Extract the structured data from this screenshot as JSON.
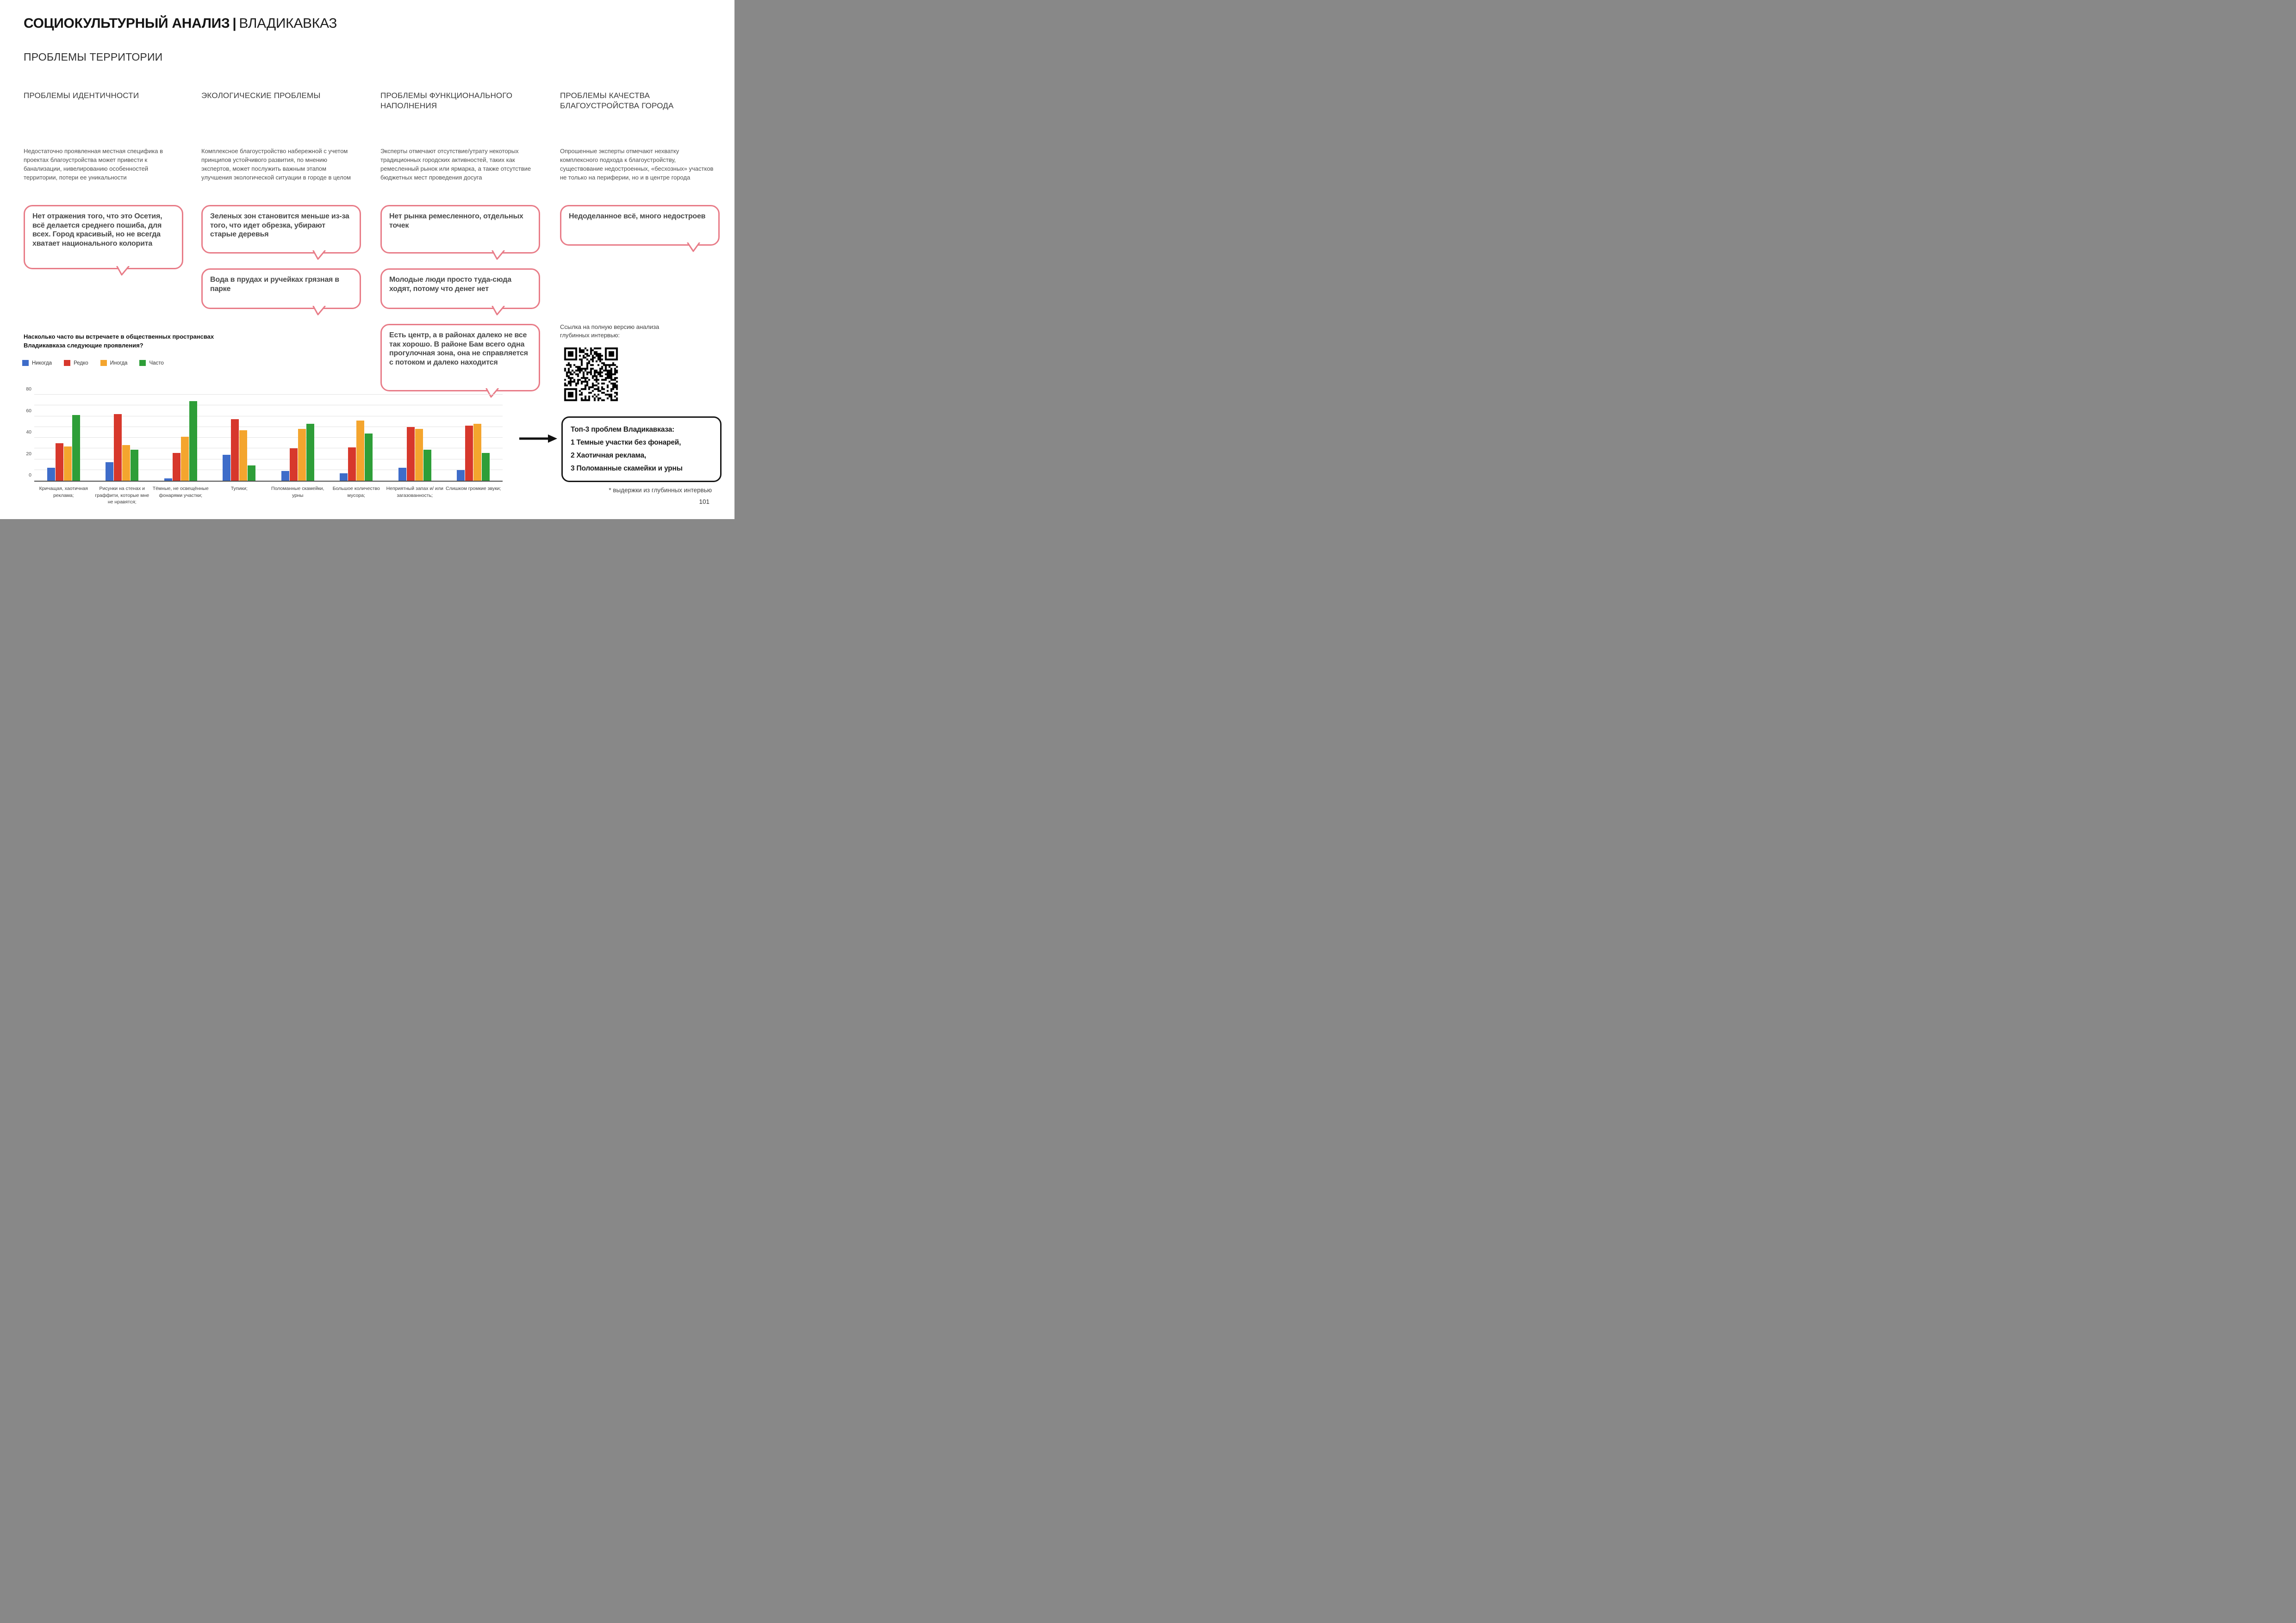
{
  "header": {
    "title_bold": "СОЦИОКУЛЬТУРНЫЙ АНАЛИЗ",
    "separator": "|",
    "title_regular": "ВЛАДИКАВКАЗ",
    "subtitle": "ПРОБЛЕМЫ ТЕРРИТОРИИ"
  },
  "columns": [
    {
      "heading": "ПРОБЛЕМЫ ИДЕНТИЧНОСТИ",
      "body": "Недостаточно проявленная местная специфика в проектах благоустройства может привести к банализации, нивелированию особенностей территории, потери ее уникальности",
      "quotes": [
        "Нет отражения того, что это Осетия, всё делается среднего пошиба, для всех. Город красивый, но не всегда хватает национального колорита"
      ]
    },
    {
      "heading": "ЭКОЛОГИЧЕСКИЕ ПРОБЛЕМЫ",
      "body": "Комплексное благоустройство набережной с учетом принципов устойчивого развития, по мнению экспертов, может послужить важным этапом улучшения экологической ситуации в городе в целом",
      "quotes": [
        "Зеленых зон становится меньше из-за того, что идет обрезка, убирают старые деревья",
        "Вода в прудах и ручейках грязная в парке"
      ]
    },
    {
      "heading": "ПРОБЛЕМЫ ФУНКЦИОНАЛЬНОГО НАПОЛНЕНИЯ",
      "body": "Эксперты отмечают отсутствие/утрату некоторых традиционных городских активностей, таких как ремесленный рынок или ярмарка, а также отсутствие бюджетных мест проведения досуга",
      "quotes": [
        "Нет рынка ремесленного, отдельных точек",
        "Молодые люди просто туда-сюда ходят, потому что денег нет",
        "Есть центр, а в районах далеко не все так хорошо. В районе Бам всего одна прогулочная зона, она не справляется с потоком и далеко находится"
      ]
    },
    {
      "heading": "ПРОБЛЕМЫ КАЧЕСТВА БЛАГОУСТРОЙСТВА ГОРОДА",
      "body": "Опрошенные эксперты отмечают нехватку комплексного подхода к благоустройству, существование недостроенных, «бесхозных» участков не только на периферии, но и в центре города",
      "quotes": [
        "Недоделанное всё, много недостроев"
      ]
    }
  ],
  "qr_section": {
    "label": "Ссылка на полную версию анализа глубинных интервью:",
    "qr_name": "qr-code"
  },
  "top3": {
    "title": "Топ-3 проблем Владикавказа:",
    "items": [
      "1 Темные участки без фонарей,",
      "2 Хаотичная реклама,",
      "3 Поломанные скамейки и урны"
    ]
  },
  "footer": {
    "note": "* выдержки из глубинных интервью",
    "page": "101"
  },
  "colors": {
    "bubble_border": "#E87C88"
  },
  "chart_data": {
    "type": "bar",
    "title": "Насколько часто вы встречаете в общественных пространсвах Владикавказа следующие проявления?",
    "categories": [
      "Кричащая, хаотичная реклама;",
      "Рисунки на стенах и граффити, которые мне не нравятся;",
      "Тёмные, не освещённые фонарями участки;",
      "Тупики;",
      "Поломанные скамейки, урны",
      "Большое количество мусора;",
      "Неприятный запах и/ или загазованность;",
      "Слишком громкие звуки;"
    ],
    "series": [
      {
        "name": "Никогда",
        "color": "#3E6CC9",
        "values": [
          12,
          17,
          2,
          24,
          9,
          7,
          12,
          10
        ]
      },
      {
        "name": "Редко",
        "color": "#D7382C",
        "values": [
          35,
          62,
          26,
          57,
          30,
          31,
          50,
          51
        ]
      },
      {
        "name": "Иногда",
        "color": "#F4A52E",
        "values": [
          32,
          33,
          41,
          47,
          48,
          56,
          48,
          53
        ]
      },
      {
        "name": "Часто",
        "color": "#2E9E38",
        "values": [
          61,
          29,
          74,
          14,
          53,
          44,
          29,
          26
        ]
      }
    ],
    "xlabel": "",
    "ylabel": "",
    "ylim": [
      0,
      80
    ],
    "yticks": [
      0,
      20,
      40,
      60,
      80
    ],
    "grid_step": 10,
    "grid": true,
    "legend_position": "top-left"
  }
}
